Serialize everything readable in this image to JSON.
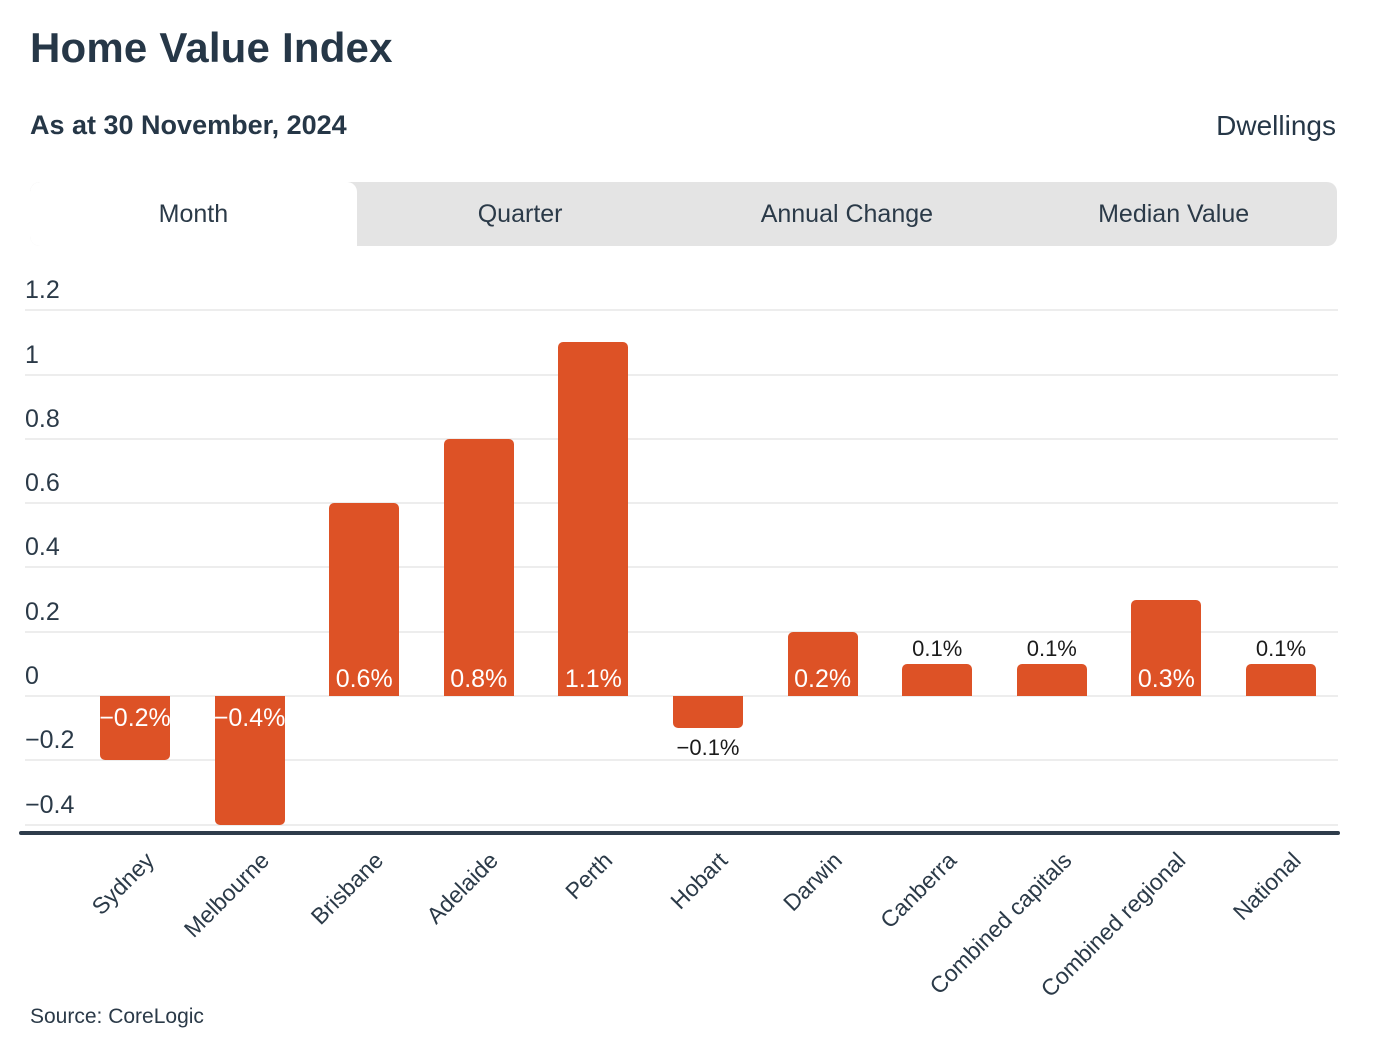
{
  "header": {
    "title": "Home Value Index",
    "subtitle": "As at 30 November, 2024",
    "category_label": "Dwellings"
  },
  "tabs": [
    {
      "label": "Month",
      "active": true
    },
    {
      "label": "Quarter",
      "active": false
    },
    {
      "label": "Annual Change",
      "active": false
    },
    {
      "label": "Median Value",
      "active": false
    }
  ],
  "footer": {
    "source": "Source: CoreLogic"
  },
  "colors": {
    "bar": "#DD5226",
    "navy_text": "#2B3A48",
    "tab_strip_bg": "#E4E4E4",
    "gridline": "#EDEDED",
    "axis_line": "#2E3C4B",
    "label_inside": "#FFFFFF",
    "label_outside": "#1B1B1B"
  },
  "chart_data": {
    "type": "bar",
    "title": "Home Value Index",
    "subtitle": "As at 30 November, 2024",
    "series_name": "Dwellings - Month change (%)",
    "categories": [
      "Sydney",
      "Melbourne",
      "Brisbane",
      "Adelaide",
      "Perth",
      "Hobart",
      "Darwin",
      "Canberra",
      "Combined capitals",
      "Combined regional",
      "National"
    ],
    "values": [
      -0.2,
      -0.4,
      0.6,
      0.8,
      1.1,
      -0.1,
      0.2,
      0.1,
      0.1,
      0.3,
      0.1
    ],
    "bar_labels": [
      "−0.2%",
      "−0.4%",
      "0.6%",
      "0.8%",
      "1.1%",
      "−0.1%",
      "0.2%",
      "0.1%",
      "0.1%",
      "0.3%",
      "0.1%"
    ],
    "label_inside": [
      true,
      true,
      true,
      true,
      true,
      false,
      true,
      false,
      false,
      true,
      false
    ],
    "y_ticks": [
      1.2,
      1.0,
      0.8,
      0.6,
      0.4,
      0.2,
      0,
      -0.2,
      -0.4
    ],
    "y_tick_labels": [
      "1.2",
      "1",
      "0.8",
      "0.6",
      "0.4",
      "0.2",
      "0",
      "−0.2",
      "−0.4"
    ],
    "ylim": [
      -0.45,
      1.25
    ],
    "xlabel": "",
    "ylabel": "",
    "grid": true,
    "legend": "none"
  }
}
